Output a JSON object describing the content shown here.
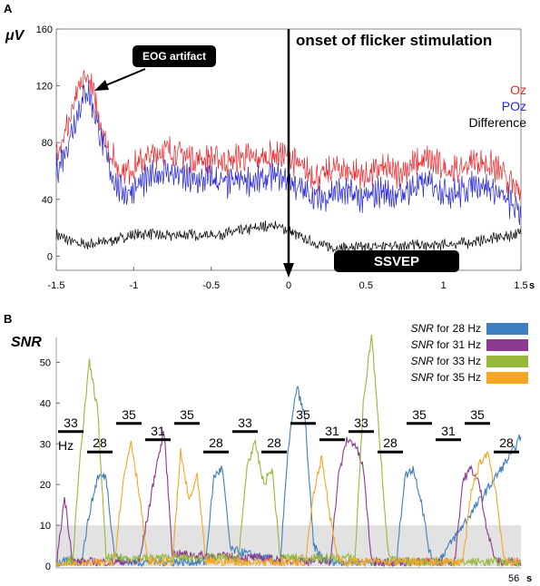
{
  "chart_data": [
    {
      "panel_label": "A",
      "type": "line",
      "ylabel": "μV",
      "xlim": [
        -1.5,
        1.5
      ],
      "ylim": [
        -10,
        160
      ],
      "x_ticks": [
        "-1.5",
        "-1",
        "-0.5",
        "0",
        "0.5",
        "1",
        "1.5"
      ],
      "x_unit": "s",
      "y_ticks": [
        "0",
        "40",
        "80",
        "120",
        "160"
      ],
      "annotations": {
        "eog": "EOG artifact",
        "onset": "onset of flicker stimulation",
        "ssvep": "SSVEP"
      },
      "colors": {
        "Oz": "#e8262a",
        "POz": "#2424d8",
        "Difference": "#000000"
      },
      "series": [
        {
          "name": "Oz",
          "x": [
            -1.5,
            -1.45,
            -1.4,
            -1.35,
            -1.3,
            -1.25,
            -1.2,
            -1.15,
            -1.1,
            -1.05,
            -1,
            -0.9,
            -0.8,
            -0.7,
            -0.6,
            -0.5,
            -0.4,
            -0.3,
            -0.2,
            -0.1,
            0,
            0.1,
            0.2,
            0.3,
            0.4,
            0.5,
            0.6,
            0.7,
            0.8,
            0.9,
            1,
            1.1,
            1.2,
            1.3,
            1.4,
            1.5
          ],
          "values": [
            75,
            85,
            100,
            118,
            128,
            110,
            88,
            72,
            62,
            60,
            63,
            70,
            75,
            72,
            68,
            70,
            66,
            70,
            68,
            72,
            70,
            60,
            55,
            62,
            60,
            56,
            62,
            58,
            64,
            68,
            62,
            60,
            68,
            64,
            56,
            42
          ]
        },
        {
          "name": "POz",
          "x": [
            -1.5,
            -1.45,
            -1.4,
            -1.35,
            -1.3,
            -1.25,
            -1.2,
            -1.15,
            -1.1,
            -1.05,
            -1,
            -0.9,
            -0.8,
            -0.7,
            -0.6,
            -0.5,
            -0.4,
            -0.3,
            -0.2,
            -0.1,
            0,
            0.1,
            0.2,
            0.3,
            0.4,
            0.5,
            0.6,
            0.7,
            0.8,
            0.9,
            1,
            1.1,
            1.2,
            1.3,
            1.4,
            1.5
          ],
          "values": [
            60,
            72,
            88,
            105,
            118,
            100,
            78,
            60,
            48,
            44,
            48,
            55,
            60,
            56,
            52,
            55,
            50,
            54,
            52,
            56,
            54,
            45,
            40,
            46,
            44,
            40,
            46,
            42,
            48,
            52,
            46,
            44,
            52,
            48,
            40,
            30
          ]
        },
        {
          "name": "Difference",
          "x": [
            -1.5,
            -1.4,
            -1.3,
            -1.2,
            -1.1,
            -1,
            -0.9,
            -0.8,
            -0.7,
            -0.6,
            -0.5,
            -0.4,
            -0.3,
            -0.2,
            -0.1,
            0,
            0.1,
            0.2,
            0.3,
            0.4,
            0.5,
            0.6,
            0.7,
            0.8,
            0.9,
            1,
            1.1,
            1.2,
            1.3,
            1.4,
            1.5
          ],
          "values": [
            15,
            10,
            8,
            10,
            12,
            15,
            16,
            14,
            15,
            15,
            15,
            16,
            18,
            20,
            22,
            18,
            12,
            8,
            6,
            6,
            6,
            7,
            8,
            8,
            7,
            8,
            9,
            10,
            12,
            14,
            16
          ]
        }
      ]
    },
    {
      "panel_label": "B",
      "type": "line",
      "ylabel": "SNR",
      "xlim": [
        0,
        56
      ],
      "ylim": [
        0,
        57
      ],
      "y_ticks": [
        "0",
        "10",
        "20",
        "30",
        "40",
        "50"
      ],
      "x_end_label": "56",
      "x_unit": "s",
      "shaded_band": [
        0,
        10
      ],
      "legend_items": [
        {
          "italic": "SNR",
          "rest": " for 28 Hz",
          "color": "#3f7fbf"
        },
        {
          "italic": "SNR",
          "rest": " for 31 Hz",
          "color": "#8b3a8f"
        },
        {
          "italic": "SNR",
          "rest": " for 33 Hz",
          "color": "#96b83a"
        },
        {
          "italic": "SNR",
          "rest": " for 35 Hz",
          "color": "#f5a623"
        }
      ],
      "hz_unit": "Hz",
      "segments": [
        {
          "label": "33",
          "start": 0,
          "end": 3.5,
          "level": 33
        },
        {
          "label": "28",
          "start": 3.5,
          "end": 7,
          "level": 28
        },
        {
          "label": "35",
          "start": 7,
          "end": 10.5,
          "level": 35
        },
        {
          "label": "31",
          "start": 10.5,
          "end": 14,
          "level": 31
        },
        {
          "label": "35",
          "start": 14,
          "end": 17.5,
          "level": 35
        },
        {
          "label": "28",
          "start": 17.5,
          "end": 21,
          "level": 28
        },
        {
          "label": "33",
          "start": 21,
          "end": 24.5,
          "level": 33
        },
        {
          "label": "28",
          "start": 24.5,
          "end": 28,
          "level": 28
        },
        {
          "label": "35",
          "start": 28,
          "end": 31.5,
          "level": 35
        },
        {
          "label": "31",
          "start": 31.5,
          "end": 35,
          "level": 31
        },
        {
          "label": "33",
          "start": 35,
          "end": 38.5,
          "level": 33
        },
        {
          "label": "28",
          "start": 38.5,
          "end": 42,
          "level": 28
        },
        {
          "label": "35",
          "start": 42,
          "end": 45.5,
          "level": 35
        },
        {
          "label": "31",
          "start": 45.5,
          "end": 49,
          "level": 31
        },
        {
          "label": "35",
          "start": 49,
          "end": 52.5,
          "level": 35
        },
        {
          "label": "28",
          "start": 52.5,
          "end": 56,
          "level": 28
        }
      ],
      "series": [
        {
          "name": "SNR for 28 Hz",
          "x": [
            0,
            3,
            4,
            5,
            6,
            7,
            8,
            18,
            19,
            20,
            21,
            27,
            28,
            29,
            30,
            31,
            32,
            33,
            41,
            42,
            43,
            44,
            45,
            46,
            55,
            56
          ],
          "values": [
            1,
            1,
            13,
            22,
            22,
            3,
            1,
            1,
            22,
            24,
            4,
            1,
            30,
            44,
            36,
            5,
            2,
            1,
            1,
            22,
            24,
            16,
            3,
            1,
            28,
            32
          ]
        },
        {
          "name": "SNR for 31 Hz",
          "x": [
            0,
            1,
            2,
            10,
            11,
            12,
            13,
            14,
            33,
            34,
            35,
            36,
            37,
            38,
            48,
            49,
            50,
            51,
            52,
            53,
            56
          ],
          "values": [
            0,
            17,
            1,
            1,
            12,
            24,
            33,
            3,
            1,
            22,
            31,
            30,
            24,
            1,
            1,
            21,
            24,
            20,
            8,
            1,
            1
          ]
        },
        {
          "name": "SNR for 33 Hz",
          "x": [
            0,
            2,
            3,
            4,
            5,
            6,
            22,
            23,
            24,
            25,
            26,
            27,
            36,
            37,
            38,
            39,
            40,
            41,
            56
          ],
          "values": [
            0,
            2,
            30,
            50,
            38,
            2,
            2,
            25,
            30,
            20,
            24,
            2,
            2,
            40,
            57,
            30,
            3,
            1,
            1
          ]
        },
        {
          "name": "SNR for 35 Hz",
          "x": [
            0,
            7,
            8,
            9,
            10,
            11,
            14,
            15,
            16,
            17,
            18,
            30,
            31,
            32,
            33,
            34,
            49,
            50,
            51,
            52,
            53,
            54,
            56
          ],
          "values": [
            0,
            1,
            20,
            31,
            18,
            1,
            1,
            28,
            16,
            22,
            1,
            1,
            18,
            27,
            12,
            1,
            1,
            18,
            25,
            28,
            18,
            1,
            1
          ]
        }
      ]
    }
  ]
}
